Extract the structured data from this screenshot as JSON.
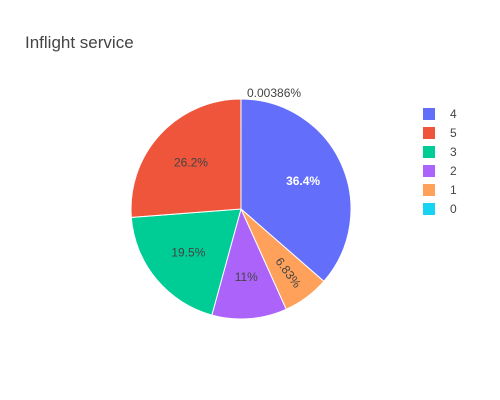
{
  "chart_data": {
    "type": "pie",
    "title": "Inflight service",
    "legend_placement": "top-right",
    "slices": [
      {
        "label": "4",
        "percent": 36.4,
        "text": "36.4%",
        "color": "#636efa",
        "text_color": "#ffffff",
        "text_weight": "bold"
      },
      {
        "label": "1",
        "percent": 6.83,
        "text": "6.83%",
        "color": "#ffa15a",
        "text_color": "#444444",
        "text_weight": "normal"
      },
      {
        "label": "2",
        "percent": 11.0,
        "text": "11%",
        "color": "#ab63fa",
        "text_color": "#444444",
        "text_weight": "normal"
      },
      {
        "label": "3",
        "percent": 19.5,
        "text": "19.5%",
        "color": "#00cc96",
        "text_color": "#444444",
        "text_weight": "normal"
      },
      {
        "label": "5",
        "percent": 26.2,
        "text": "26.2%",
        "color": "#ef553b",
        "text_color": "#444444",
        "text_weight": "normal"
      },
      {
        "label": "0",
        "percent": 0.00386,
        "text": "0.00386%",
        "color": "#19d3f3",
        "text_color": "#444444",
        "text_weight": "normal"
      }
    ],
    "legend": [
      {
        "label": "4",
        "color": "#636efa"
      },
      {
        "label": "5",
        "color": "#ef553b"
      },
      {
        "label": "3",
        "color": "#00cc96"
      },
      {
        "label": "2",
        "color": "#ab63fa"
      },
      {
        "label": "1",
        "color": "#ffa15a"
      },
      {
        "label": "0",
        "color": "#19d3f3"
      }
    ]
  }
}
